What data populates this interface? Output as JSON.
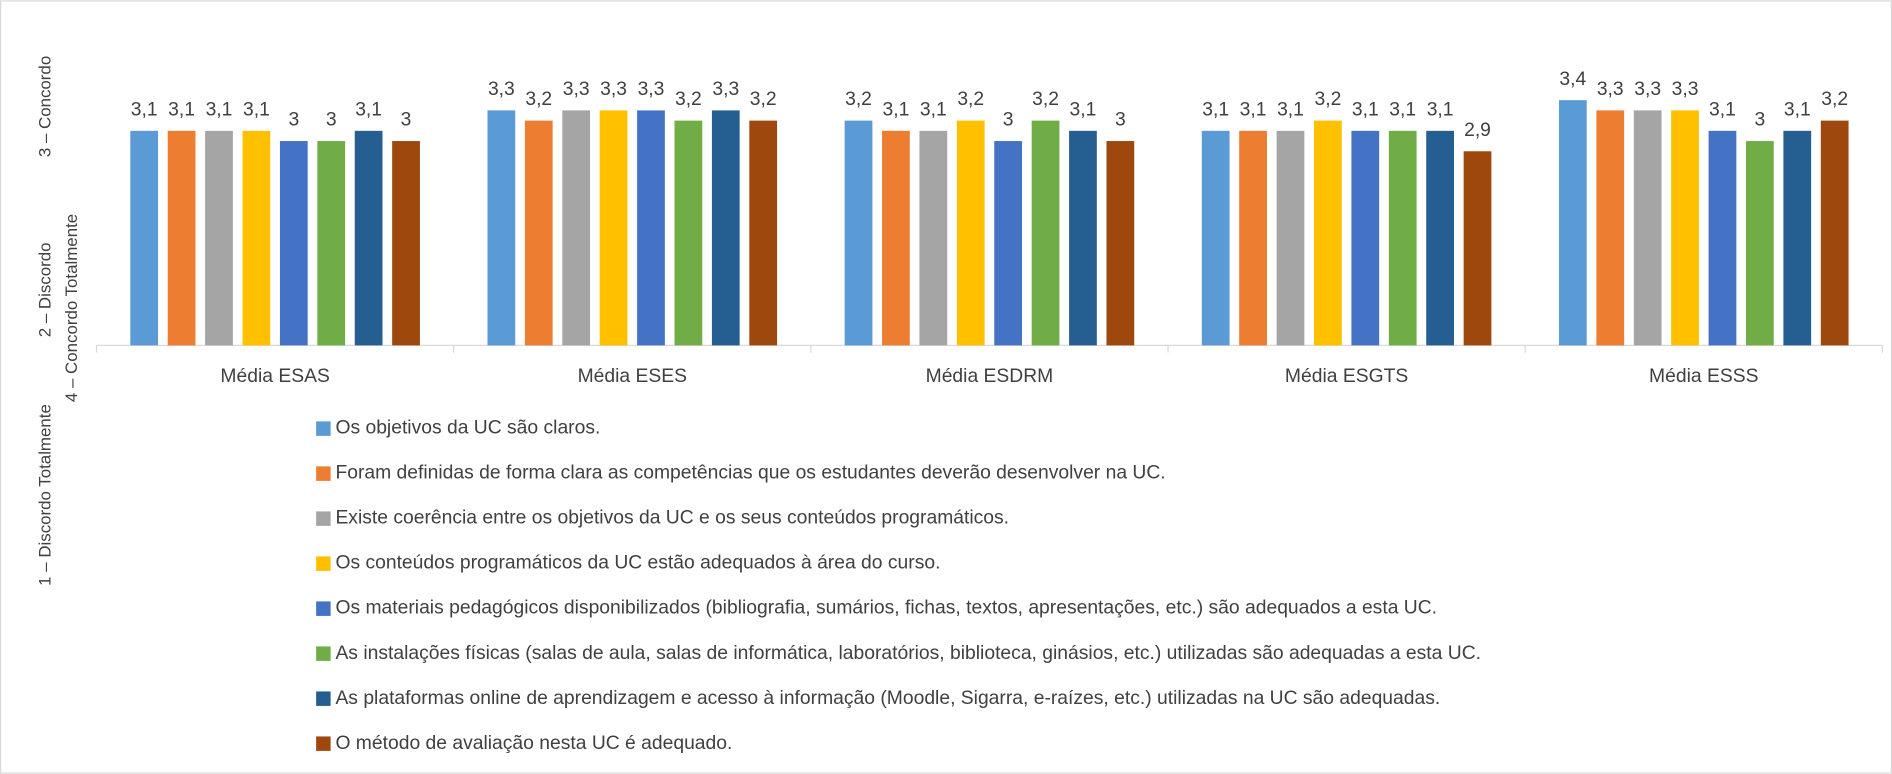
{
  "chart_data": {
    "type": "bar",
    "y_label": [
      "1 – Discordo Totalmente",
      "2 – Discordo",
      "3 – Concordo",
      "4 – Concordo Totalmente"
    ],
    "categories": [
      "Média ESAS",
      "Média ESES",
      "Média ESDRM",
      "Média ESGTS",
      "Média ESSS"
    ],
    "ylim": [
      1,
      4
    ],
    "legend": "bottom",
    "series": [
      {
        "name": "Os objetivos da UC são claros.",
        "color": "#5b9bd5",
        "values": [
          3.1,
          3.3,
          3.2,
          3.1,
          3.4
        ],
        "value_labels": [
          "3,1",
          "3,3",
          "3,2",
          "3,1",
          "3,4"
        ]
      },
      {
        "name": "Foram definidas de forma clara as competências que os estudantes deverão desenvolver na UC.",
        "color": "#ed7d31",
        "values": [
          3.1,
          3.2,
          3.1,
          3.1,
          3.3
        ],
        "value_labels": [
          "3,1",
          "3,2",
          "3,1",
          "3,1",
          "3,3"
        ]
      },
      {
        "name": "Existe coerência entre os objetivos da UC e os seus conteúdos programáticos.",
        "color": "#a5a5a5",
        "values": [
          3.1,
          3.3,
          3.1,
          3.1,
          3.3
        ],
        "value_labels": [
          "3,1",
          "3,3",
          "3,1",
          "3,1",
          "3,3"
        ]
      },
      {
        "name": "Os conteúdos programáticos da UC estão adequados à área do curso.",
        "color": "#ffc000",
        "values": [
          3.1,
          3.3,
          3.2,
          3.2,
          3.3
        ],
        "value_labels": [
          "3,1",
          "3,3",
          "3,2",
          "3,2",
          "3,3"
        ]
      },
      {
        "name": "Os materiais pedagógicos disponibilizados (bibliografia, sumários, fichas, textos, apresentações, etc.) são adequados a esta UC.",
        "color": "#4472c4",
        "values": [
          3,
          3.3,
          3,
          3.1,
          3.1
        ],
        "value_labels": [
          "3",
          "3,3",
          "3",
          "3,1",
          "3,1"
        ]
      },
      {
        "name": "As instalações físicas (salas de aula, salas de informática, laboratórios, biblioteca, ginásios, etc.) utilizadas são adequadas a esta UC.",
        "color": "#70ad47",
        "values": [
          3,
          3.2,
          3.2,
          3.1,
          3
        ],
        "value_labels": [
          "3",
          "3,2",
          "3,2",
          "3,1",
          "3"
        ]
      },
      {
        "name": "As plataformas online de aprendizagem e acesso à informação (Moodle, Sigarra, e-raízes, etc.) utilizadas na UC são adequadas.",
        "color": "#255e91",
        "values": [
          3.1,
          3.3,
          3.1,
          3.1,
          3.1
        ],
        "value_labels": [
          "3,1",
          "3,3",
          "3,1",
          "3,1",
          "3,1"
        ]
      },
      {
        "name": "O método de avaliação nesta UC é adequado.",
        "color": "#9e480e",
        "values": [
          3,
          3.2,
          3,
          2.9,
          3.2
        ],
        "value_labels": [
          "3",
          "3,2",
          "3",
          "2,9",
          "3,2"
        ]
      }
    ]
  }
}
